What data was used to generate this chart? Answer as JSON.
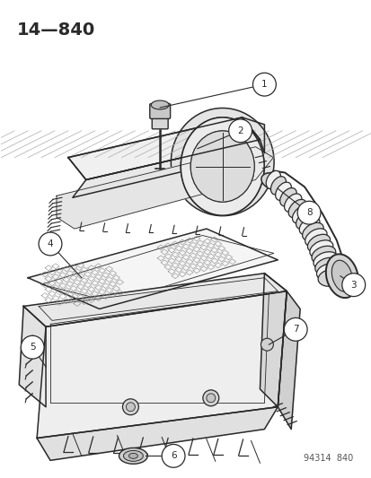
{
  "title_label": "14—840",
  "catalog_number": "94314  840",
  "bg_color": "#ffffff",
  "line_color": "#2a2a2a",
  "fig_width": 4.14,
  "fig_height": 5.33,
  "dpi": 100
}
